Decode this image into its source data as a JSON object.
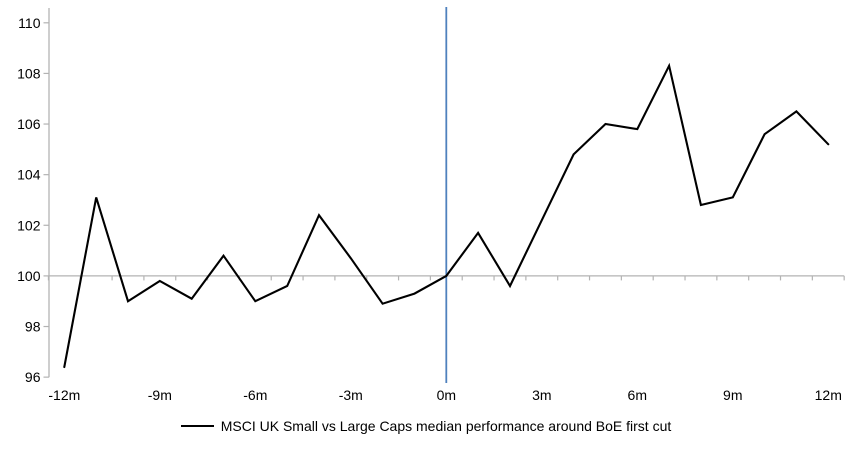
{
  "chart_data": {
    "type": "line",
    "title": "",
    "xlabel": "",
    "ylabel": "",
    "x": [
      -12,
      -11,
      -10,
      -9,
      -8,
      -7,
      -6,
      -5,
      -4,
      -3,
      -2,
      -1,
      0,
      1,
      2,
      3,
      4,
      5,
      6,
      7,
      8,
      9,
      10,
      11,
      12
    ],
    "series": [
      {
        "name": "MSCI UK Small vs Large Caps median performance around BoE first cut",
        "color": "#000000",
        "values": [
          96.4,
          103.1,
          99.0,
          99.8,
          99.1,
          100.8,
          99.0,
          99.6,
          102.4,
          100.7,
          98.9,
          99.3,
          100.0,
          101.7,
          99.6,
          102.2,
          104.8,
          106.0,
          105.8,
          108.3,
          102.8,
          103.1,
          105.6,
          106.5,
          105.2
        ]
      }
    ],
    "xlim": [
      -12.5,
      12.5
    ],
    "ylim": [
      96,
      110.6
    ],
    "y_ticks": [
      96,
      98,
      100,
      102,
      104,
      106,
      108,
      110
    ],
    "x_tick_months": [
      -12,
      -9,
      -6,
      -3,
      0,
      3,
      6,
      9,
      12
    ],
    "x_tick_labels": [
      "-12m",
      "-9m",
      "-6m",
      "-3m",
      "0m",
      "3m",
      "6m",
      "9m",
      "12m"
    ],
    "baseline_value": 100,
    "event_line_x": 0,
    "event_line_color": "#4F81BD",
    "axis_color": "#b3b3b3",
    "grid": "baseline-only",
    "legend_position": "bottom-center"
  },
  "legend": {
    "label": "MSCI UK Small vs Large Caps median performance around BoE first cut"
  }
}
